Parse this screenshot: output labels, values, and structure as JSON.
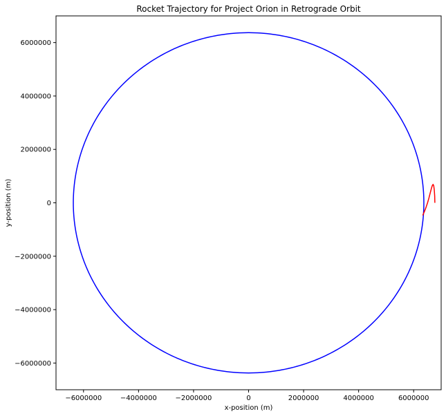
{
  "chart_data": {
    "type": "line",
    "title": "Rocket Trajectory for Project Orion in Retrograde Orbit",
    "xlabel": "x-position (m)",
    "ylabel": "y-position (m)",
    "xlim": [
      -7000000,
      7000000
    ],
    "ylim": [
      -7000000,
      7000000
    ],
    "xticks": [
      -6000000,
      -4000000,
      -2000000,
      0,
      2000000,
      4000000,
      6000000
    ],
    "yticks": [
      -6000000,
      -4000000,
      -2000000,
      0,
      2000000,
      4000000,
      6000000
    ],
    "xtick_labels": [
      "−6000000",
      "−4000000",
      "−2000000",
      "0",
      "2000000",
      "4000000",
      "6000000"
    ],
    "ytick_labels": [
      "−6000000",
      "−4000000",
      "−2000000",
      "0",
      "2000000",
      "4000000",
      "6000000"
    ],
    "grid": false,
    "series": [
      {
        "color": "#0000ff",
        "shape": "circle",
        "center": [
          0,
          0
        ],
        "radius": 6371000
      },
      {
        "color": "#ff0000",
        "x": [
          6771000,
          6765000,
          6750000,
          6730000,
          6705000,
          6675000,
          6640000,
          6600000,
          6555000,
          6505000,
          6450000,
          6390000,
          6330000
        ],
        "y": [
          0,
          250000,
          480000,
          640000,
          690000,
          640000,
          520000,
          360000,
          180000,
          0,
          -170000,
          -330000,
          -470000
        ]
      }
    ]
  }
}
